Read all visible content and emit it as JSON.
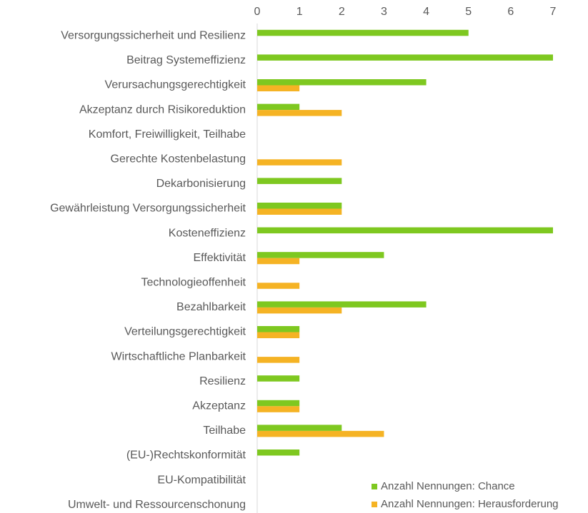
{
  "chart_data": {
    "type": "hbar",
    "categories": [
      "Versorgungssicherheit und Resilienz",
      "Beitrag Systemeffizienz",
      "Verursachungsgerechtigkeit",
      "Akzeptanz durch Risikoreduktion",
      "Komfort, Freiwilligkeit, Teilhabe",
      "Gerechte Kostenbelastung",
      "Dekarbonisierung",
      "Gewährleistung Versorgungssicherheit",
      "Kosteneffizienz",
      "Effektivität",
      "Technologieoffenheit",
      "Bezahlbarkeit",
      "Verteilungsgerechtigkeit",
      "Wirtschaftliche Planbarkeit",
      "Resilienz",
      "Akzeptanz",
      "Teilhabe",
      "(EU-)Rechtskonformität",
      "EU-Kompatibilität",
      "Umwelt- und Ressourcenschonung"
    ],
    "series": [
      {
        "name": "Anzahl Nennungen: Chance",
        "color": "#7ec820",
        "values": [
          5,
          7,
          4,
          1,
          0,
          0,
          2,
          2,
          7,
          3,
          0,
          4,
          1,
          0,
          1,
          1,
          2,
          1,
          0,
          0
        ]
      },
      {
        "name": "Anzahl Nennungen: Herausforderung",
        "color": "#f5b324",
        "values": [
          0,
          0,
          1,
          2,
          0,
          2,
          0,
          2,
          0,
          1,
          1,
          2,
          1,
          1,
          0,
          1,
          3,
          0,
          0,
          0
        ]
      }
    ],
    "xlim": [
      0,
      7
    ],
    "xticks": [
      0,
      1,
      2,
      3,
      4,
      5,
      6,
      7
    ],
    "grid": false,
    "legend": "bottom-right"
  }
}
